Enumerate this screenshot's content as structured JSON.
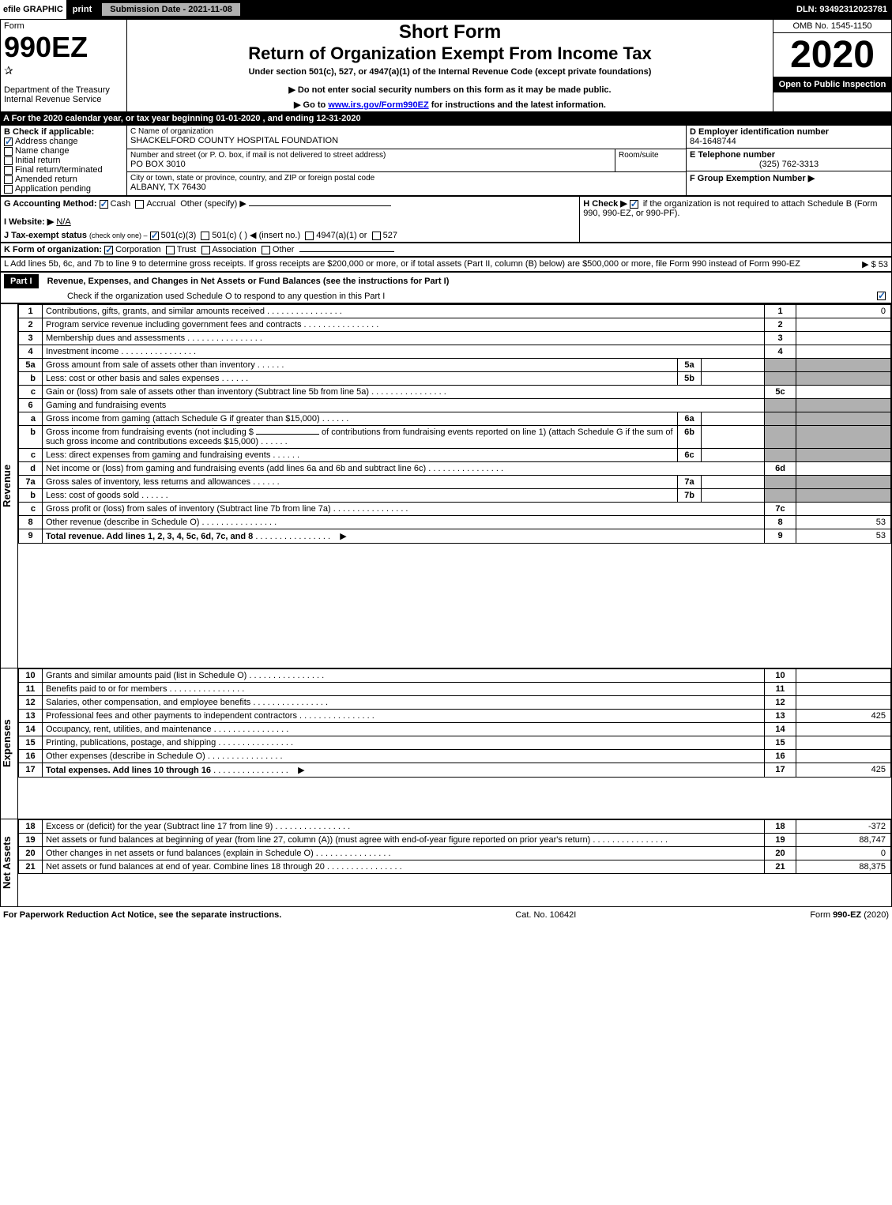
{
  "top_bar": {
    "efile": "efile GRAPHIC",
    "print": "print",
    "submission_date_label": "Submission Date - 2021-11-08",
    "dln": "DLN: 93492312023781"
  },
  "header": {
    "form_word": "Form",
    "form_number": "990EZ",
    "dept": "Department of the Treasury",
    "irs": "Internal Revenue Service",
    "short_form": "Short Form",
    "return_title": "Return of Organization Exempt From Income Tax",
    "under_section": "Under section 501(c), 527, or 4947(a)(1) of the Internal Revenue Code (except private foundations)",
    "do_not_enter": "▶ Do not enter social security numbers on this form as it may be made public.",
    "go_to": "▶ Go to ",
    "go_to_link": "www.irs.gov/Form990EZ",
    "go_to_rest": " for instructions and the latest information.",
    "omb": "OMB No. 1545-1150",
    "year": "2020",
    "open_to": "Open to Public Inspection"
  },
  "period": {
    "label_a": "A For the 2020 calendar year, or tax year beginning 01-01-2020 , and ending 12-31-2020"
  },
  "box_b": {
    "header": "B Check if applicable:",
    "items": [
      {
        "label": "Address change",
        "checked": true
      },
      {
        "label": "Name change",
        "checked": false
      },
      {
        "label": "Initial return",
        "checked": false
      },
      {
        "label": "Final return/terminated",
        "checked": false
      },
      {
        "label": "Amended return",
        "checked": false
      },
      {
        "label": "Application pending",
        "checked": false
      }
    ]
  },
  "box_c": {
    "name_label": "C Name of organization",
    "name": "SHACKELFORD COUNTY HOSPITAL FOUNDATION",
    "street_label": "Number and street (or P. O. box, if mail is not delivered to street address)",
    "room_label": "Room/suite",
    "street": "PO BOX 3010",
    "city_label": "City or town, state or province, country, and ZIP or foreign postal code",
    "city": "ALBANY, TX  76430"
  },
  "box_d": {
    "label": "D Employer identification number",
    "value": "84-1648744"
  },
  "box_e": {
    "label": "E Telephone number",
    "value": "(325) 762-3313"
  },
  "box_f": {
    "label": "F Group Exemption Number  ▶",
    "value": ""
  },
  "box_g": {
    "label": "G Accounting Method:",
    "cash": "Cash",
    "accrual": "Accrual",
    "other": "Other (specify) ▶"
  },
  "box_h": {
    "label": "H Check ▶",
    "text": "if the organization is not required to attach Schedule B (Form 990, 990-EZ, or 990-PF).",
    "checked": true
  },
  "box_i": {
    "label": "I Website: ▶",
    "value": "N/A"
  },
  "box_j": {
    "label": "J Tax-exempt status",
    "sub": "(check only one) ‒",
    "opt1": "501(c)(3)",
    "opt2": "501(c) (   ) ◀ (insert no.)",
    "opt3": "4947(a)(1) or",
    "opt4": "527"
  },
  "box_k": {
    "label": "K Form of organization:",
    "opts": [
      "Corporation",
      "Trust",
      "Association",
      "Other"
    ],
    "checked_idx": 0
  },
  "box_l": {
    "text": "L Add lines 5b, 6c, and 7b to line 9 to determine gross receipts. If gross receipts are $200,000 or more, or if total assets (Part II, column (B) below) are $500,000 or more, file Form 990 instead of Form 990-EZ",
    "amount_label": "▶ $ 53"
  },
  "part1": {
    "header": "Part I",
    "title": "Revenue, Expenses, and Changes in Net Assets or Fund Balances (see the instructions for Part I)",
    "check_line": "Check if the organization used Schedule O to respond to any question in this Part I",
    "check_checked": true
  },
  "vertical_labels": {
    "revenue": "Revenue",
    "expenses": "Expenses",
    "net_assets": "Net Assets"
  },
  "lines": {
    "1": {
      "n": "1",
      "t": "Contributions, gifts, grants, and similar amounts received",
      "rn": "1",
      "rv": "0"
    },
    "2": {
      "n": "2",
      "t": "Program service revenue including government fees and contracts",
      "rn": "2",
      "rv": ""
    },
    "3": {
      "n": "3",
      "t": "Membership dues and assessments",
      "rn": "3",
      "rv": ""
    },
    "4": {
      "n": "4",
      "t": "Investment income",
      "rn": "4",
      "rv": ""
    },
    "5a": {
      "n": "5a",
      "t": "Gross amount from sale of assets other than inventory",
      "ib": "5a",
      "iv": ""
    },
    "5b": {
      "n": "b",
      "t": "Less: cost or other basis and sales expenses",
      "ib": "5b",
      "iv": ""
    },
    "5c": {
      "n": "c",
      "t": "Gain or (loss) from sale of assets other than inventory (Subtract line 5b from line 5a)",
      "rn": "5c",
      "rv": ""
    },
    "6": {
      "n": "6",
      "t": "Gaming and fundraising events"
    },
    "6a": {
      "n": "a",
      "t": "Gross income from gaming (attach Schedule G if greater than $15,000)",
      "ib": "6a",
      "iv": ""
    },
    "6b": {
      "n": "b",
      "t1": "Gross income from fundraising events (not including $",
      "t2": "of contributions from fundraising events reported on line 1) (attach Schedule G if the sum of such gross income and contributions exceeds $15,000)",
      "ib": "6b",
      "iv": ""
    },
    "6c": {
      "n": "c",
      "t": "Less: direct expenses from gaming and fundraising events",
      "ib": "6c",
      "iv": ""
    },
    "6d": {
      "n": "d",
      "t": "Net income or (loss) from gaming and fundraising events (add lines 6a and 6b and subtract line 6c)",
      "rn": "6d",
      "rv": ""
    },
    "7a": {
      "n": "7a",
      "t": "Gross sales of inventory, less returns and allowances",
      "ib": "7a",
      "iv": ""
    },
    "7b": {
      "n": "b",
      "t": "Less: cost of goods sold",
      "ib": "7b",
      "iv": ""
    },
    "7c": {
      "n": "c",
      "t": "Gross profit or (loss) from sales of inventory (Subtract line 7b from line 7a)",
      "rn": "7c",
      "rv": ""
    },
    "8": {
      "n": "8",
      "t": "Other revenue (describe in Schedule O)",
      "rn": "8",
      "rv": "53"
    },
    "9": {
      "n": "9",
      "t": "Total revenue. Add lines 1, 2, 3, 4, 5c, 6d, 7c, and 8",
      "rn": "9",
      "rv": "53",
      "bold": true,
      "arrow": true
    },
    "10": {
      "n": "10",
      "t": "Grants and similar amounts paid (list in Schedule O)",
      "rn": "10",
      "rv": ""
    },
    "11": {
      "n": "11",
      "t": "Benefits paid to or for members",
      "rn": "11",
      "rv": ""
    },
    "12": {
      "n": "12",
      "t": "Salaries, other compensation, and employee benefits",
      "rn": "12",
      "rv": ""
    },
    "13": {
      "n": "13",
      "t": "Professional fees and other payments to independent contractors",
      "rn": "13",
      "rv": "425"
    },
    "14": {
      "n": "14",
      "t": "Occupancy, rent, utilities, and maintenance",
      "rn": "14",
      "rv": ""
    },
    "15": {
      "n": "15",
      "t": "Printing, publications, postage, and shipping",
      "rn": "15",
      "rv": ""
    },
    "16": {
      "n": "16",
      "t": "Other expenses (describe in Schedule O)",
      "rn": "16",
      "rv": ""
    },
    "17": {
      "n": "17",
      "t": "Total expenses. Add lines 10 through 16",
      "rn": "17",
      "rv": "425",
      "bold": true,
      "arrow": true
    },
    "18": {
      "n": "18",
      "t": "Excess or (deficit) for the year (Subtract line 17 from line 9)",
      "rn": "18",
      "rv": "-372"
    },
    "19": {
      "n": "19",
      "t": "Net assets or fund balances at beginning of year (from line 27, column (A)) (must agree with end-of-year figure reported on prior year's return)",
      "rn": "19",
      "rv": "88,747"
    },
    "20": {
      "n": "20",
      "t": "Other changes in net assets or fund balances (explain in Schedule O)",
      "rn": "20",
      "rv": "0"
    },
    "21": {
      "n": "21",
      "t": "Net assets or fund balances at end of year. Combine lines 18 through 20",
      "rn": "21",
      "rv": "88,375"
    }
  },
  "footer": {
    "left": "For Paperwork Reduction Act Notice, see the separate instructions.",
    "center": "Cat. No. 10642I",
    "right_pre": "Form ",
    "right_bold": "990-EZ",
    "right_post": " (2020)"
  }
}
